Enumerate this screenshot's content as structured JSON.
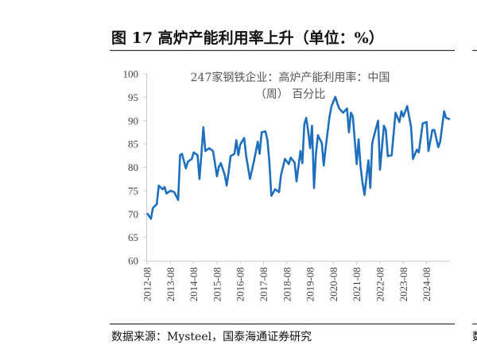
{
  "figure": {
    "title": "图 17  高炉产能利用率上升（单位：%）",
    "source": "数据来源：Mysteel，国泰海通证券研究",
    "right_edge_fragment": "数"
  },
  "chart_data": {
    "type": "line",
    "title": [
      "247家钢铁企业：高炉产能利用率：中国",
      "（周） 百分比"
    ],
    "xlabel": "",
    "ylabel": "",
    "ylim": [
      60,
      100
    ],
    "yticks": [
      "60",
      "65",
      "70",
      "75",
      "80",
      "85",
      "90",
      "95",
      "100"
    ],
    "xticks": [
      "2012-08",
      "2013-08",
      "2014-08",
      "2015-08",
      "2016-08",
      "2017-08",
      "2018-08",
      "2019-08",
      "2020-08",
      "2021-08",
      "2022-08",
      "2023-08",
      "2024-08"
    ],
    "grid": false,
    "legend": "none",
    "color": "#1f6fbf",
    "series": [
      {
        "x": [
          "2012-08",
          "2012-10",
          "2012-11",
          "2013-01",
          "2013-02",
          "2013-04",
          "2013-05",
          "2013-06",
          "2013-08",
          "2013-10",
          "2013-12",
          "2014-01",
          "2014-02",
          "2014-04",
          "2014-05",
          "2014-07",
          "2014-08",
          "2014-10",
          "2014-11",
          "2014-12",
          "2015-01",
          "2015-02",
          "2015-04",
          "2015-06",
          "2015-08",
          "2015-09",
          "2015-10",
          "2015-12",
          "2016-01",
          "2016-02",
          "2016-03",
          "2016-05",
          "2016-06",
          "2016-07",
          "2016-08",
          "2016-10",
          "2016-11",
          "2017-01",
          "2017-03",
          "2017-05",
          "2017-06",
          "2017-07",
          "2017-09",
          "2017-10",
          "2017-11",
          "2017-12",
          "2018-02",
          "2018-04",
          "2018-05",
          "2018-07",
          "2018-09",
          "2018-10",
          "2018-12",
          "2019-01",
          "2019-03",
          "2019-04",
          "2019-05",
          "2019-06",
          "2019-07",
          "2019-08",
          "2019-09",
          "2019-10",
          "2019-11",
          "2019-12",
          "2020-02",
          "2020-03",
          "2020-04",
          "2020-06",
          "2020-07",
          "2020-09",
          "2020-10",
          "2020-11",
          "2021-01",
          "2021-03",
          "2021-04",
          "2021-05",
          "2021-06",
          "2021-08",
          "2021-09",
          "2021-10",
          "2021-11",
          "2021-12",
          "2022-02",
          "2022-03",
          "2022-04",
          "2022-05",
          "2022-07",
          "2022-08",
          "2022-10",
          "2022-11",
          "2022-12",
          "2023-02",
          "2023-04",
          "2023-06",
          "2023-07",
          "2023-08",
          "2023-10",
          "2023-12",
          "2024-01",
          "2024-03",
          "2024-04",
          "2024-06",
          "2024-08",
          "2024-09",
          "2024-11",
          "2024-12",
          "2025-02",
          "2025-03",
          "2025-05",
          "2025-06",
          "2025-08"
        ],
        "values": [
          70.2,
          69.0,
          71.3,
          72.1,
          76.1,
          75.3,
          75.8,
          74.4,
          75.0,
          74.7,
          73.0,
          82.6,
          82.9,
          79.8,
          81.2,
          81.8,
          83.2,
          82.6,
          77.5,
          82.9,
          88.6,
          83.5,
          84.1,
          83.5,
          78.1,
          80.1,
          80.9,
          78.4,
          76.1,
          79.0,
          82.4,
          82.9,
          85.8,
          82.6,
          84.9,
          86.3,
          82.6,
          77.5,
          81.2,
          85.5,
          82.9,
          87.5,
          87.7,
          85.8,
          81.2,
          73.9,
          75.3,
          74.7,
          78.4,
          81.8,
          80.7,
          82.1,
          81.0,
          77.0,
          83.5,
          80.9,
          89.2,
          90.6,
          87.7,
          84.1,
          88.9,
          75.6,
          82.9,
          86.9,
          85.2,
          80.4,
          84.1,
          90.9,
          93.1,
          95.1,
          93.7,
          92.6,
          91.7,
          92.6,
          87.5,
          91.7,
          90.9,
          80.7,
          86.0,
          80.1,
          76.7,
          74.1,
          81.5,
          75.6,
          85.2,
          86.9,
          90.0,
          79.5,
          88.9,
          88.0,
          82.4,
          82.6,
          91.7,
          89.7,
          92.0,
          90.9,
          93.1,
          88.6,
          81.8,
          83.8,
          83.2,
          89.4,
          89.7,
          83.5,
          88.0,
          88.0,
          84.3,
          85.5,
          92.0,
          90.6,
          90.3
        ]
      }
    ]
  }
}
